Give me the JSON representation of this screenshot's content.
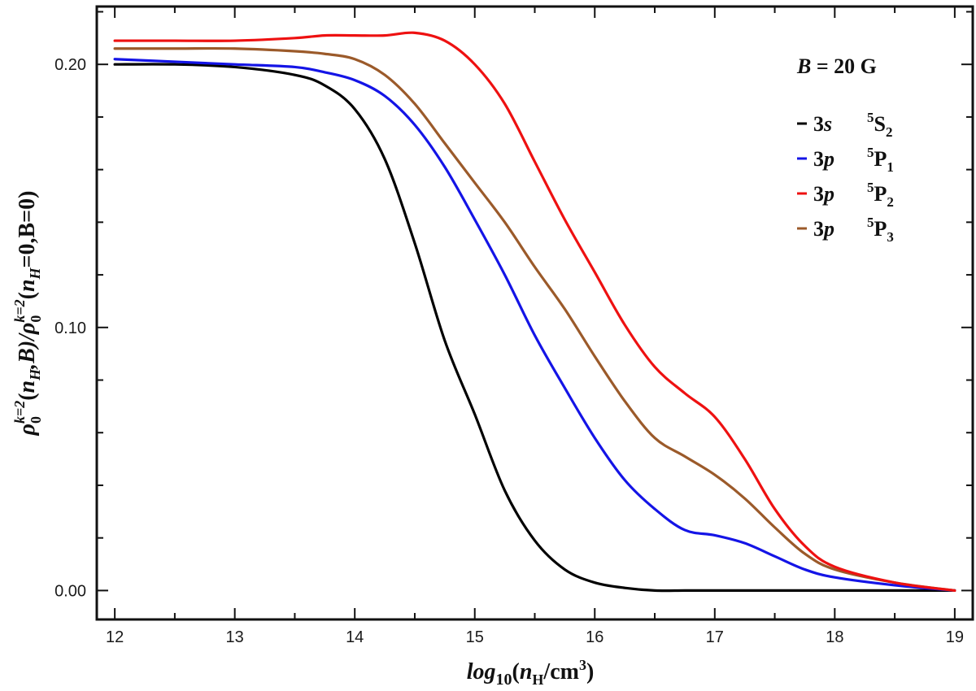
{
  "chart_data": {
    "type": "line",
    "xlabel": {
      "prefix": "log",
      "prefix_sub": "10",
      "open": "(",
      "n": "n",
      "n_sub": "H",
      "rest": "/cm",
      "rest_sup": "3",
      "close": ")"
    },
    "ylabel": {
      "rho": "ρ",
      "rho_sub": "0",
      "rho_sup": "k=2",
      "num_args_open": "(",
      "num_n": "n",
      "num_n_sub": "H",
      "num_args_rest": ",B)/",
      "den_rho": "ρ",
      "den_rho_sub": "0",
      "den_rho_sup": "k=2",
      "den_open": "(",
      "den_n": "n",
      "den_n_sub": "H",
      "den_rest": "=0,B=0)"
    },
    "xlim": [
      11.85,
      19.15
    ],
    "ylim": [
      -0.011,
      0.222
    ],
    "x_ticks": [
      12,
      13,
      14,
      15,
      16,
      17,
      18,
      19
    ],
    "x_tick_labels": [
      "12",
      "13",
      "14",
      "15",
      "16",
      "17",
      "18",
      "19"
    ],
    "y_ticks": [
      0.0,
      0.1,
      0.2
    ],
    "y_tick_labels": [
      "0.00",
      "0.10",
      "0.20"
    ],
    "annotation": {
      "b": "B",
      "rest": " = 20 G"
    },
    "legend_position": "top-right",
    "x": [
      12.0,
      12.5,
      13.0,
      13.5,
      13.75,
      14.0,
      14.25,
      14.5,
      14.75,
      15.0,
      15.25,
      15.5,
      15.75,
      16.0,
      16.25,
      16.5,
      16.75,
      17.0,
      17.25,
      17.5,
      17.75,
      18.0,
      18.5,
      19.0
    ],
    "series": [
      {
        "name": "3s 5S2",
        "config": "3",
        "config_ital": "s",
        "term_sup": "5",
        "term": "S",
        "term_sub": "2",
        "color": "#000000",
        "values": [
          0.2,
          0.2,
          0.199,
          0.196,
          0.192,
          0.183,
          0.164,
          0.132,
          0.095,
          0.067,
          0.038,
          0.019,
          0.008,
          0.003,
          0.001,
          0.0,
          0.0,
          0.0,
          0.0,
          0.0,
          0.0,
          0.0,
          0.0,
          0.0
        ]
      },
      {
        "name": "3p 5P1",
        "config": "3",
        "config_ital": "p",
        "term_sup": "5",
        "term": "P",
        "term_sub": "1",
        "color": "#1414e6",
        "values": [
          0.202,
          0.201,
          0.2,
          0.199,
          0.197,
          0.194,
          0.188,
          0.177,
          0.161,
          0.141,
          0.12,
          0.097,
          0.077,
          0.058,
          0.042,
          0.031,
          0.023,
          0.021,
          0.018,
          0.013,
          0.008,
          0.005,
          0.002,
          0.0
        ]
      },
      {
        "name": "3p 5P2",
        "config": "3",
        "config_ital": "p",
        "term_sup": "5",
        "term": "P",
        "term_sub": "2",
        "color": "#ee1111",
        "values": [
          0.209,
          0.209,
          0.209,
          0.21,
          0.211,
          0.211,
          0.211,
          0.212,
          0.209,
          0.2,
          0.185,
          0.163,
          0.141,
          0.121,
          0.101,
          0.085,
          0.075,
          0.066,
          0.05,
          0.031,
          0.017,
          0.009,
          0.003,
          0.0
        ]
      },
      {
        "name": "3p 5P3",
        "config": "3",
        "config_ital": "p",
        "term_sup": "5",
        "term": "P",
        "term_sub": "3",
        "color": "#9b5a2a",
        "values": [
          0.206,
          0.206,
          0.206,
          0.205,
          0.204,
          0.202,
          0.196,
          0.185,
          0.17,
          0.155,
          0.14,
          0.123,
          0.107,
          0.089,
          0.072,
          0.058,
          0.051,
          0.044,
          0.035,
          0.024,
          0.014,
          0.008,
          0.003,
          0.0
        ]
      }
    ]
  }
}
